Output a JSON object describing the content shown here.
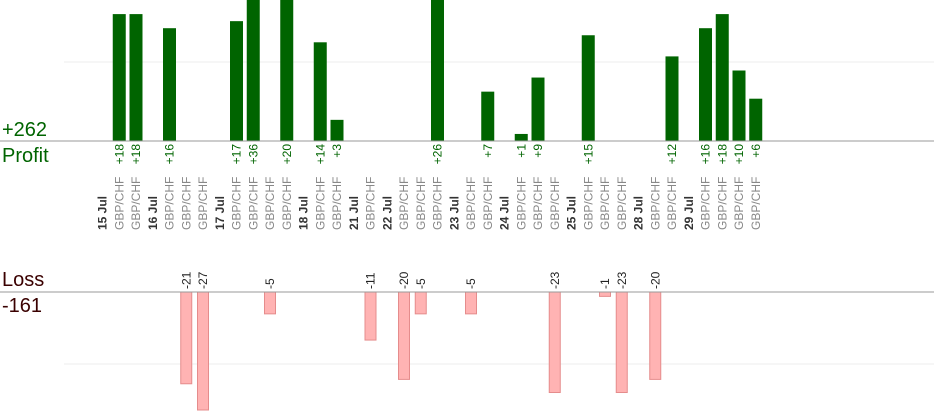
{
  "summary": {
    "profit_total": "+262",
    "profit_label": "Profit",
    "loss_label": "Loss",
    "loss_total": "-161"
  },
  "colors": {
    "profit_bar": "#006400",
    "profit_text": "#006400",
    "loss_bar": "#ffb3b3",
    "loss_bar_edge": "#e58c8c",
    "loss_text": "#222222",
    "date_text": "#333333",
    "pair_text": "#888888",
    "axis": "#999999",
    "grid": "#eeeeee"
  },
  "chart_data": {
    "type": "bar",
    "columns": [
      {
        "label": "15 Jul",
        "kind": "date"
      },
      {
        "label": "GBP/CHF",
        "kind": "pair",
        "value": 18
      },
      {
        "label": "GBP/CHF",
        "kind": "pair",
        "value": 18
      },
      {
        "label": "16 Jul",
        "kind": "date"
      },
      {
        "label": "GBP/CHF",
        "kind": "pair",
        "value": 16
      },
      {
        "label": "GBP/CHF",
        "kind": "pair",
        "value": -21
      },
      {
        "label": "GBP/CHF",
        "kind": "pair",
        "value": -27
      },
      {
        "label": "17 Jul",
        "kind": "date"
      },
      {
        "label": "GBP/CHF",
        "kind": "pair",
        "value": 17
      },
      {
        "label": "GBP/CHF",
        "kind": "pair",
        "value": 36
      },
      {
        "label": "GBP/CHF",
        "kind": "pair",
        "value": -5
      },
      {
        "label": "GBP/CHF",
        "kind": "pair",
        "value": 20
      },
      {
        "label": "18 Jul",
        "kind": "date"
      },
      {
        "label": "GBP/CHF",
        "kind": "pair",
        "value": 14
      },
      {
        "label": "GBP/CHF",
        "kind": "pair",
        "value": 3
      },
      {
        "label": "21 Jul",
        "kind": "date"
      },
      {
        "label": "GBP/CHF",
        "kind": "pair",
        "value": -11
      },
      {
        "label": "22 Jul",
        "kind": "date"
      },
      {
        "label": "GBP/CHF",
        "kind": "pair",
        "value": -20
      },
      {
        "label": "GBP/CHF",
        "kind": "pair",
        "value": -5
      },
      {
        "label": "GBP/CHF",
        "kind": "pair",
        "value": 26
      },
      {
        "label": "23 Jul",
        "kind": "date"
      },
      {
        "label": "GBP/CHF",
        "kind": "pair",
        "value": -5
      },
      {
        "label": "GBP/CHF",
        "kind": "pair",
        "value": 7
      },
      {
        "label": "24 Jul",
        "kind": "date"
      },
      {
        "label": "GBP/CHF",
        "kind": "pair",
        "value": 1
      },
      {
        "label": "GBP/CHF",
        "kind": "pair",
        "value": 9
      },
      {
        "label": "GBP/CHF",
        "kind": "pair",
        "value": -23
      },
      {
        "label": "25 Jul",
        "kind": "date"
      },
      {
        "label": "GBP/CHF",
        "kind": "pair",
        "value": 15
      },
      {
        "label": "GBP/CHF",
        "kind": "pair",
        "value": -1
      },
      {
        "label": "GBP/CHF",
        "kind": "pair",
        "value": -23
      },
      {
        "label": "28 Jul",
        "kind": "date"
      },
      {
        "label": "GBP/CHF",
        "kind": "pair",
        "value": -20
      },
      {
        "label": "GBP/CHF",
        "kind": "pair",
        "value": 12
      },
      {
        "label": "29 Jul",
        "kind": "date"
      },
      {
        "label": "GBP/CHF",
        "kind": "pair",
        "value": 16
      },
      {
        "label": "GBP/CHF",
        "kind": "pair",
        "value": 18
      },
      {
        "label": "GBP/CHF",
        "kind": "pair",
        "value": 10
      },
      {
        "label": "GBP/CHF",
        "kind": "pair",
        "value": 6
      }
    ],
    "profit_axis_max": 18,
    "loss_axis_max": 27,
    "grid": true
  }
}
